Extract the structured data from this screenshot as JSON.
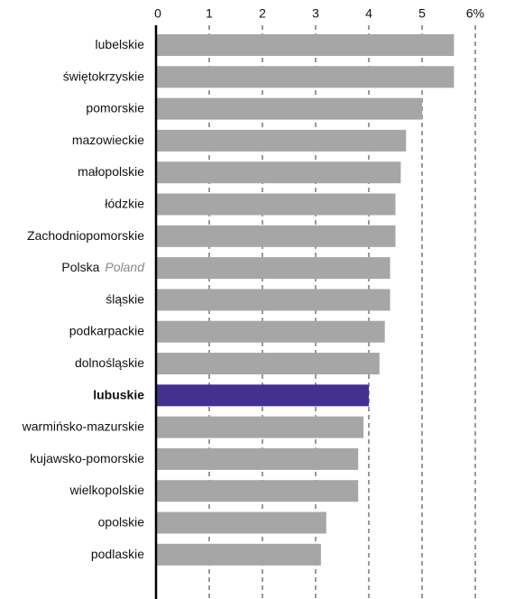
{
  "chart_data": {
    "type": "bar",
    "orientation": "horizontal",
    "categories": [
      "lubelskie",
      "świętokrzyskie",
      "pomorskie",
      "mazowieckie",
      "małopolskie",
      "łódzkie",
      "Zachodniopomorskie",
      "Polska",
      "śląskie",
      "podkarpackie",
      "dolnośląskie",
      "lubuskie",
      "warmińsko-mazurskie",
      "kujawsko-pomorskie",
      "wielkopolskie",
      "opolskie",
      "podlaskie"
    ],
    "values": [
      5.6,
      5.6,
      5.0,
      4.7,
      4.6,
      4.5,
      4.5,
      4.4,
      4.4,
      4.3,
      4.2,
      4.0,
      3.9,
      3.8,
      3.8,
      3.2,
      3.1
    ],
    "color": "#a6a6a6",
    "highlight_index": 11,
    "highlight_color": "#44318f",
    "annotations": [
      {
        "category_index": 7,
        "text": "Poland"
      }
    ],
    "xlim": [
      0,
      6.2
    ],
    "xticks": [
      0,
      1,
      2,
      3,
      4,
      5,
      {
        "value": 6,
        "label": "6%"
      }
    ],
    "grid": true
  }
}
